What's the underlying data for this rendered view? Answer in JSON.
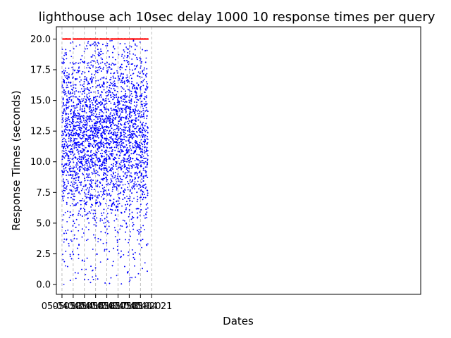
{
  "chart_data": {
    "type": "scatter",
    "title": "lighthouse ach 10sec delay 1000 10 response times per query",
    "xlabel": "Dates",
    "ylabel": "Response Times (seconds)",
    "xlim": [
      "05-04 12:30",
      "05-05 21:00"
    ],
    "ylim": [
      -0.8,
      21
    ],
    "x_ticks": [
      {
        "value": "05-04 13",
        "label": "05-04 13"
      },
      {
        "value": "05-04 14",
        "label": "05-04 14"
      },
      {
        "value": "05-04 15",
        "label": "05-04 15"
      },
      {
        "value": "05-04 16",
        "label": "05-04 16"
      },
      {
        "value": "05-04 17",
        "label": "05-04 17"
      },
      {
        "value": "05-04 18",
        "label": "05-04 18"
      },
      {
        "value": "05-04 19",
        "label": "05-04 19"
      },
      {
        "value": "05-04 20",
        "label": "05-04 20"
      },
      {
        "value": "05-04 21",
        "label": "05-04 21"
      }
    ],
    "y_ticks": [
      0.0,
      2.5,
      5.0,
      7.5,
      10.0,
      12.5,
      15.0,
      17.5,
      20.0
    ],
    "x_grid": true,
    "y_grid": false,
    "series": [
      {
        "color": "#0000ff",
        "marker": "dot",
        "x_range": [
          "05-04 13",
          "05-04 20:40"
        ],
        "y_range": [
          0,
          20
        ],
        "density": "dense, concentrated around 10-15"
      },
      {
        "color": "#ff0000",
        "marker": "dot",
        "x_range": [
          "05-04 13",
          "05-04 20:40"
        ],
        "y": 20,
        "note": "timeouts at 20.0"
      }
    ]
  }
}
